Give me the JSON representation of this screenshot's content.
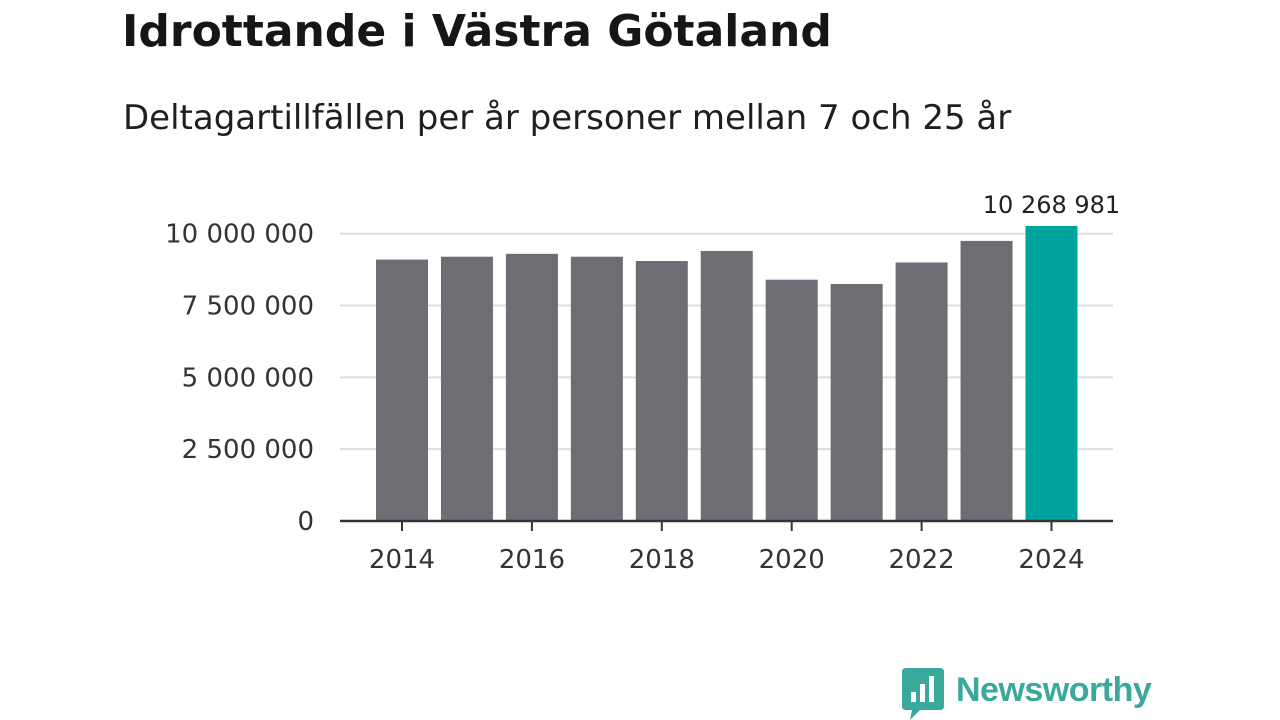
{
  "title": "Idrottande i Västra Götaland",
  "subtitle": "Deltagartillfällen per år personer mellan 7 och 25 år",
  "brand": {
    "name": "Newsworthy",
    "logo_icon": "bar-chart-speech-bubble-icon",
    "color": "#3aa89a"
  },
  "colors": {
    "bar": "#6e6d73",
    "highlight": "#00a39b",
    "grid": "#dddddd",
    "axis": "#333333"
  },
  "chart_data": {
    "type": "bar",
    "title": "Idrottande i Västra Götaland",
    "subtitle": "Deltagartillfällen per år personer mellan 7 och 25 år",
    "xlabel": "",
    "ylabel": "",
    "categories": [
      2014,
      2015,
      2016,
      2017,
      2018,
      2019,
      2020,
      2021,
      2022,
      2023,
      2024
    ],
    "values": [
      9100000,
      9200000,
      9300000,
      9200000,
      9050000,
      9400000,
      8400000,
      8250000,
      9000000,
      9750000,
      10268981
    ],
    "highlight_index": 10,
    "ylim": [
      0,
      10268981
    ],
    "yticks": [
      0,
      2500000,
      5000000,
      7500000,
      10000000
    ],
    "ytick_labels": [
      "0",
      "2 500 000",
      "5 000 000",
      "7 500 000",
      "10 000 000"
    ],
    "xtick_labels": [
      "2014",
      "2016",
      "2018",
      "2020",
      "2022",
      "2024"
    ],
    "data_labels": [
      {
        "index": 10,
        "text": "10 268 981"
      }
    ],
    "grid": true,
    "legend": "none"
  }
}
